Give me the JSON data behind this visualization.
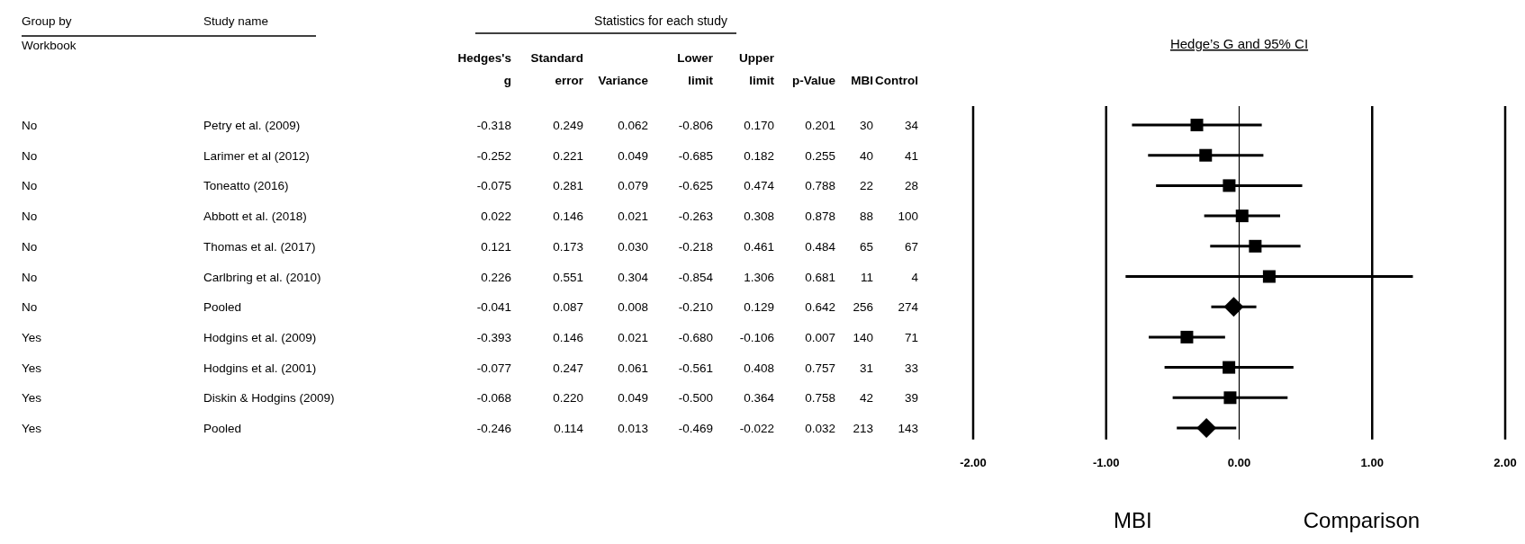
{
  "chart_data": [
    {
      "type": "other",
      "title": "Statistics for each study",
      "categories": [
        "Group by Workbook",
        "Study name",
        "Hedges's g",
        "Standard error",
        "Variance",
        "Lower limit",
        "Upper limit",
        "p-Value",
        "MBI",
        "Control"
      ],
      "cell_labels": [
        [
          "No",
          "Petry et al. (2009)",
          "-0.318",
          "0.249",
          "0.062",
          "-0.806",
          "0.170",
          "0.201",
          "30",
          "34"
        ],
        [
          "No",
          "Larimer et al (2012)",
          "-0.252",
          "0.221",
          "0.049",
          "-0.685",
          "0.182",
          "0.255",
          "40",
          "41"
        ],
        [
          "No",
          "Toneatto (2016)",
          "-0.075",
          "0.281",
          "0.079",
          "-0.625",
          "0.474",
          "0.788",
          "22",
          "28"
        ],
        [
          "No",
          "Abbott et al. (2018)",
          "0.022",
          "0.146",
          "0.021",
          "-0.263",
          "0.308",
          "0.878",
          "88",
          "100"
        ],
        [
          "No",
          "Thomas et al. (2017)",
          "0.121",
          "0.173",
          "0.030",
          "-0.218",
          "0.461",
          "0.484",
          "65",
          "67"
        ],
        [
          "No",
          "Carlbring et al. (2010)",
          "0.226",
          "0.551",
          "0.304",
          "-0.854",
          "1.306",
          "0.681",
          "11",
          "4"
        ],
        [
          "No",
          "Pooled",
          "-0.041",
          "0.087",
          "0.008",
          "-0.210",
          "0.129",
          "0.642",
          "256",
          "274"
        ],
        [
          "Yes",
          "Hodgins et al. (2009)",
          "-0.393",
          "0.146",
          "0.021",
          "-0.680",
          "-0.106",
          "0.007",
          "140",
          "71"
        ],
        [
          "Yes",
          "Hodgins et al. (2001)",
          "-0.077",
          "0.247",
          "0.061",
          "-0.561",
          "0.408",
          "0.757",
          "31",
          "33"
        ],
        [
          "Yes",
          "Diskin & Hodgins (2009)",
          "-0.068",
          "0.220",
          "0.049",
          "-0.500",
          "0.364",
          "0.758",
          "42",
          "39"
        ],
        [
          "Yes",
          "Pooled",
          "-0.246",
          "0.114",
          "0.013",
          "-0.469",
          "-0.022",
          "0.032",
          "213",
          "143"
        ]
      ]
    },
    {
      "type": "scatter",
      "orientation": "horizontal",
      "title": "Hedge’s G and 95% CI",
      "categories": [
        null,
        null,
        null,
        null,
        null,
        null,
        null,
        null,
        null,
        null,
        null
      ],
      "series": [
        {
          "color": "#000000",
          "marker": "square",
          "values": [
            -0.318,
            -0.252,
            -0.075,
            0.022,
            0.121,
            0.226,
            null,
            -0.393,
            -0.077,
            -0.068,
            null
          ],
          "errors": [
            [
              -0.806,
              0.17
            ],
            [
              -0.685,
              0.182
            ],
            [
              -0.625,
              0.474
            ],
            [
              -0.263,
              0.308
            ],
            [
              -0.218,
              0.461
            ],
            [
              -0.854,
              1.306
            ],
            null,
            [
              -0.68,
              -0.106
            ],
            [
              -0.561,
              0.408
            ],
            [
              -0.5,
              0.364
            ],
            null
          ]
        },
        {
          "color": "#000000",
          "marker": "diamond",
          "values": [
            null,
            null,
            null,
            null,
            null,
            null,
            -0.041,
            null,
            null,
            null,
            -0.246
          ],
          "errors": [
            null,
            null,
            null,
            null,
            null,
            null,
            [
              -0.21,
              0.129
            ],
            null,
            null,
            null,
            [
              -0.469,
              -0.022
            ]
          ]
        }
      ],
      "xlim": [
        -2,
        2
      ],
      "xticks": [
        {
          "value": -2,
          "label": "-2.00"
        },
        {
          "value": -1,
          "label": "-1.00"
        },
        {
          "value": 0,
          "label": "0.00"
        },
        {
          "value": 1,
          "label": "1.00"
        },
        {
          "value": 2,
          "label": "2.00"
        }
      ],
      "grid": "x",
      "annotations": [
        "MBI",
        "Comparison"
      ]
    }
  ]
}
